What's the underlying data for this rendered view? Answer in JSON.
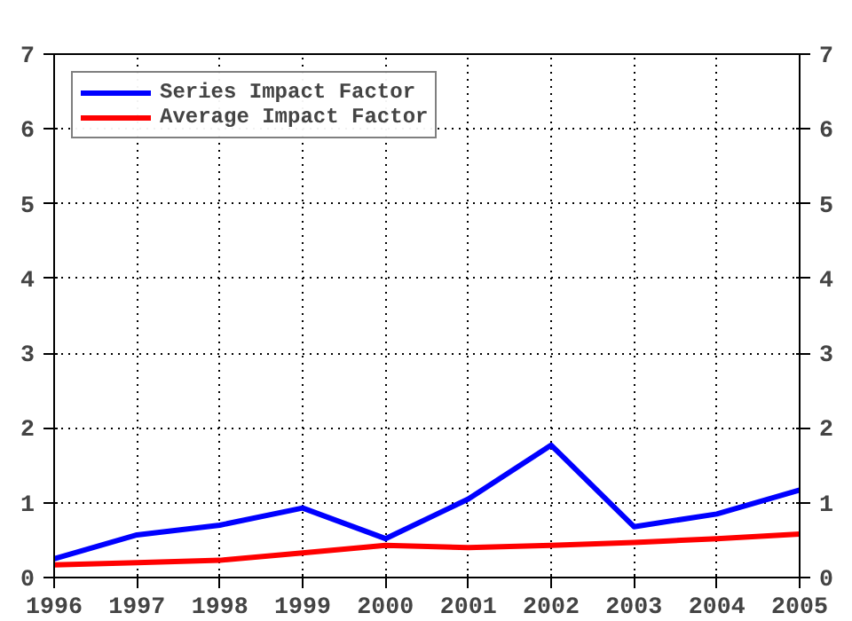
{
  "chart_data": {
    "type": "line",
    "x": [
      1996,
      1997,
      1998,
      1999,
      2000,
      2001,
      2002,
      2003,
      2004,
      2005
    ],
    "series": [
      {
        "name": "Series Impact Factor",
        "color": "#0000ff",
        "values": [
          0.25,
          0.57,
          0.7,
          0.93,
          0.52,
          1.05,
          1.77,
          0.68,
          0.85,
          1.17
        ]
      },
      {
        "name": "Average Impact Factor",
        "color": "#ff0000",
        "values": [
          0.17,
          0.2,
          0.23,
          0.33,
          0.43,
          0.4,
          0.43,
          0.47,
          0.52,
          0.58
        ]
      }
    ],
    "xlim": [
      1996,
      2005
    ],
    "xticks": [
      1996,
      1997,
      1998,
      1999,
      2000,
      2001,
      2002,
      2003,
      2004,
      2005
    ],
    "ylim": [
      0,
      7
    ],
    "yticks": [
      0,
      1,
      2,
      3,
      4,
      5,
      6,
      7
    ],
    "y2lim": [
      0,
      7
    ],
    "y2ticks": [
      0,
      1,
      2,
      3,
      4,
      5,
      6,
      7
    ],
    "grid": true,
    "legend": "top left",
    "marker": "none",
    "line_style": "solid"
  }
}
